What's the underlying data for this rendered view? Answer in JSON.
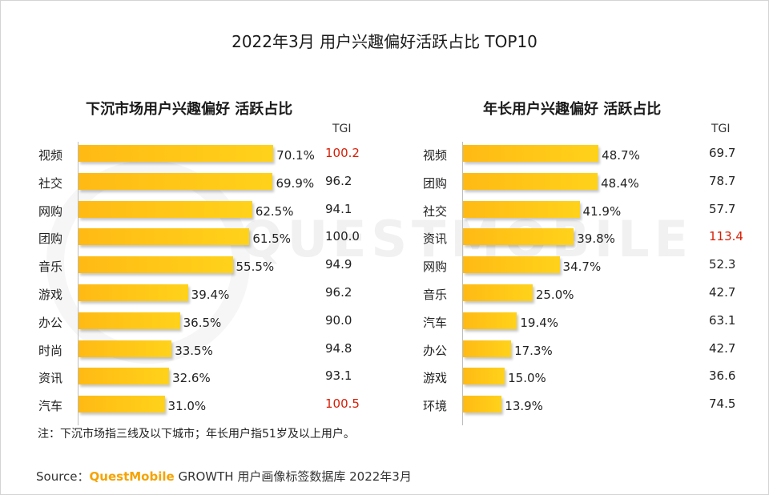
{
  "title": "2022年3月 用户兴趣偏好活跃占比 TOP10",
  "watermark": "QUESTMOBILE",
  "note": "注：下沉市场指三线及以下城市；年长用户指51岁及以上用户。",
  "source": {
    "prefix": "Source：",
    "brand": "QuestMobile",
    "text": "GROWTH 用户画像标签数据库 2022年3月"
  },
  "colors": {
    "bar": "#ffc518",
    "highlight": "#d81e06",
    "watermark": "#f1f1f1"
  },
  "chart_data": [
    {
      "type": "bar",
      "orientation": "horizontal",
      "title": "下沉市场用户兴趣偏好 活跃占比",
      "tgi_label": "TGI",
      "unit": "%",
      "categories": [
        "视频",
        "社交",
        "网购",
        "团购",
        "音乐",
        "游戏",
        "办公",
        "时尚",
        "资讯",
        "汽车"
      ],
      "values": [
        70.1,
        69.9,
        62.5,
        61.5,
        55.5,
        39.4,
        36.5,
        33.5,
        32.6,
        31.0
      ],
      "value_labels": [
        "70.1%",
        "69.9%",
        "62.5%",
        "61.5%",
        "55.5%",
        "39.4%",
        "36.5%",
        "33.5%",
        "32.6%",
        "31.0%"
      ],
      "tgi": [
        "100.2",
        "96.2",
        "94.1",
        "100.0",
        "94.9",
        "96.2",
        "90.0",
        "94.8",
        "93.1",
        "100.5"
      ],
      "tgi_highlight": [
        true,
        false,
        false,
        false,
        false,
        false,
        false,
        false,
        false,
        true
      ]
    },
    {
      "type": "bar",
      "orientation": "horizontal",
      "title": "年长用户兴趣偏好 活跃占比",
      "tgi_label": "TGI",
      "unit": "%",
      "categories": [
        "视频",
        "团购",
        "社交",
        "资讯",
        "网购",
        "音乐",
        "汽车",
        "办公",
        "游戏",
        "环境"
      ],
      "values": [
        48.7,
        48.4,
        41.9,
        39.8,
        34.7,
        25.0,
        19.4,
        17.3,
        15.0,
        13.9
      ],
      "value_labels": [
        "48.7%",
        "48.4%",
        "41.9%",
        "39.8%",
        "34.7%",
        "25.0%",
        "19.4%",
        "17.3%",
        "15.0%",
        "13.9%"
      ],
      "tgi": [
        "69.7",
        "78.7",
        "57.7",
        "113.4",
        "52.3",
        "42.7",
        "63.1",
        "42.7",
        "36.6",
        "74.5"
      ],
      "tgi_highlight": [
        false,
        false,
        false,
        true,
        false,
        false,
        false,
        false,
        false,
        false
      ]
    }
  ]
}
